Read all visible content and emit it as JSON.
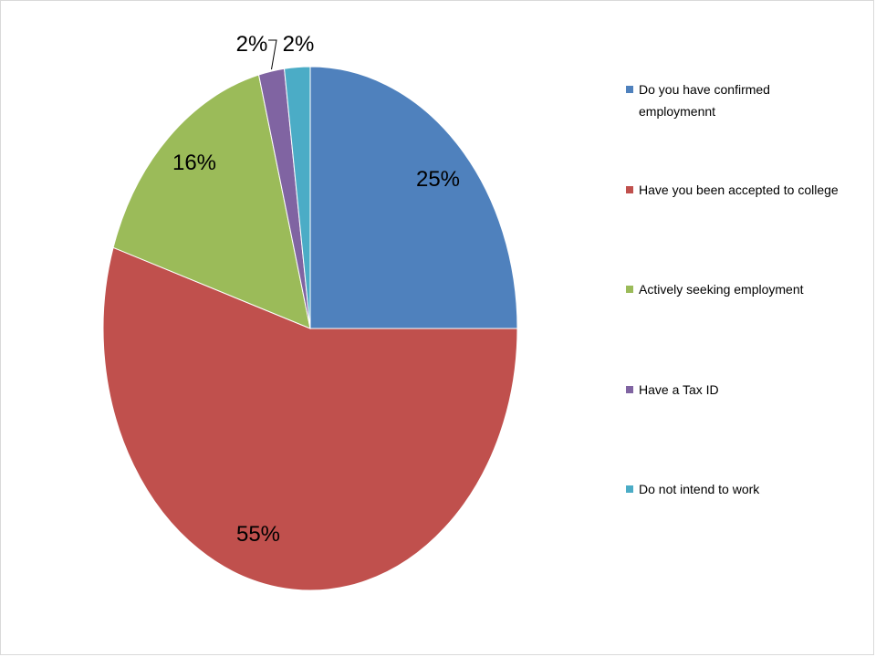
{
  "chart_data": {
    "type": "pie",
    "title": "",
    "series": [
      {
        "name": "Do you have confirmed employmennt",
        "value": 25,
        "label": "25%",
        "color": "#4F81BD"
      },
      {
        "name": "Have you been accepted to college",
        "value": 55,
        "label": "55%",
        "color": "#C0504D"
      },
      {
        "name": "Actively seeking employment",
        "value": 16,
        "label": "16%",
        "color": "#9BBB59"
      },
      {
        "name": "Have a Tax ID",
        "value": 2,
        "label": "2%",
        "color": "#8064A2"
      },
      {
        "name": "Do not intend to work",
        "value": 2,
        "label": "2%",
        "color": "#4BACC6"
      }
    ],
    "legend_position": "right"
  }
}
